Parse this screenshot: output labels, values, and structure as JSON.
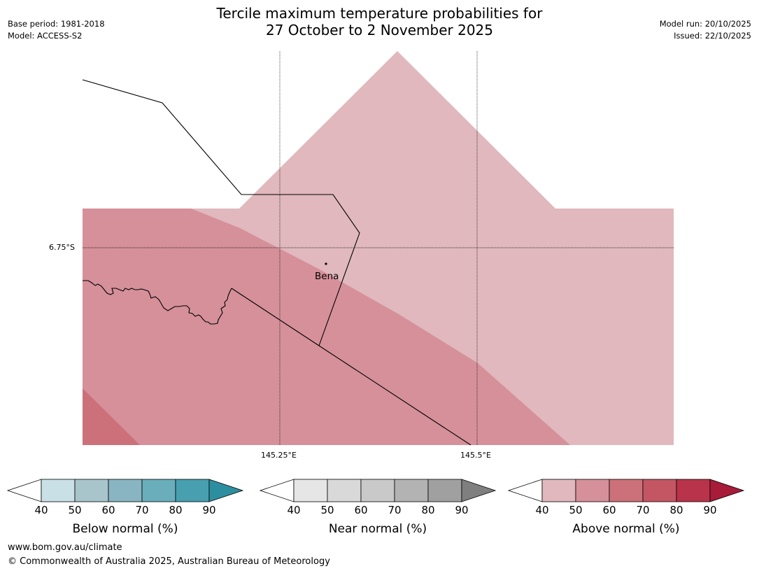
{
  "title": {
    "line1": "Tercile maximum temperature probabilities for",
    "line2": "27 October to 2 November 2025"
  },
  "meta_left": {
    "base_period": "Base period: 1981-2018",
    "model": "Model: ACCESS-S2"
  },
  "meta_right": {
    "model_run": "Model run: 20/10/2025",
    "issued": "Issued: 22/10/2025"
  },
  "map": {
    "lat_label": "6.75°S",
    "lon_labels": [
      "145.25°E",
      "145.5°E"
    ],
    "place_label": "Bena"
  },
  "colorbars": [
    {
      "title": "Below normal (%)",
      "ticks": [
        "40",
        "50",
        "60",
        "70",
        "80",
        "90"
      ],
      "colors": [
        "#ffffff",
        "#c9e1e6",
        "#a7c5cb",
        "#89b5c2",
        "#6aaebc",
        "#479fb0",
        "#2d8e9f"
      ]
    },
    {
      "title": "Near normal (%)",
      "ticks": [
        "40",
        "50",
        "60",
        "70",
        "80",
        "90"
      ],
      "colors": [
        "#ffffff",
        "#e6e6e6",
        "#d9d9d9",
        "#c9c9c9",
        "#b3b3b3",
        "#a0a0a0",
        "#7f7f7f"
      ]
    },
    {
      "title": "Above normal (%)",
      "ticks": [
        "40",
        "50",
        "60",
        "70",
        "80",
        "90"
      ],
      "colors": [
        "#ffffff",
        "#e0b8bd",
        "#d5909a",
        "#cc7079",
        "#c45663",
        "#b9334a",
        "#a81c3a"
      ]
    }
  ],
  "footer": {
    "url": "www.bom.gov.au/climate",
    "copyright": "© Commonwealth of Australia 2025, Australian Bureau of Meteorology"
  }
}
